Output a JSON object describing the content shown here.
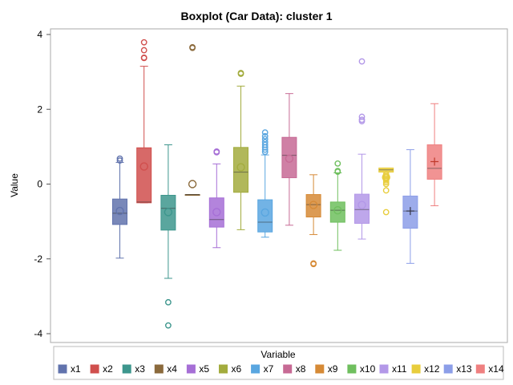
{
  "chart_data": {
    "type": "boxplot",
    "title": "Boxplot (Car Data): cluster 1",
    "xlabel": "",
    "ylabel": "Value",
    "ylim": [
      -4.3,
      4.2
    ],
    "yticks": [
      -4,
      -2,
      0,
      2,
      4
    ],
    "yticklabels": [
      "-4",
      "-2",
      "0",
      "2",
      "4"
    ],
    "grid": false,
    "legend": {
      "title": "Variable",
      "placement": "bottom"
    },
    "series": [
      {
        "name": "x1",
        "color": "#6173ad",
        "whisker_low": -1.98,
        "q1": -1.08,
        "median": -0.78,
        "q3": -0.4,
        "whisker_high": 0.58,
        "mean": -0.72,
        "outliers": [
          0.63,
          0.68
        ]
      },
      {
        "name": "x2",
        "color": "#d04f4d",
        "whisker_low": -0.5,
        "q1": -0.5,
        "median": -0.48,
        "q3": 0.97,
        "whisker_high": 3.15,
        "mean": 0.47,
        "outliers": [
          3.37,
          3.38,
          3.58,
          3.79
        ]
      },
      {
        "name": "x3",
        "color": "#3d968d",
        "whisker_low": -2.52,
        "q1": -1.23,
        "median": -0.65,
        "q3": -0.3,
        "whisker_high": 1.05,
        "mean": -0.75,
        "outliers": [
          -3.16,
          -3.78
        ]
      },
      {
        "name": "x4",
        "color": "#8b6a3c",
        "whisker_low": -0.28,
        "q1": -0.28,
        "median": -0.28,
        "q3": -0.28,
        "whisker_high": -0.28,
        "mean": 0.0,
        "outliers": [
          3.64,
          3.66
        ]
      },
      {
        "name": "x5",
        "color": "#a66fd6",
        "whisker_low": -1.7,
        "q1": -1.15,
        "median": -0.95,
        "q3": -0.37,
        "whisker_high": 0.54,
        "mean": -0.75,
        "outliers": [
          0.85,
          0.87
        ]
      },
      {
        "name": "x6",
        "color": "#a3ac3e",
        "whisker_low": -1.22,
        "q1": -0.22,
        "median": 0.32,
        "q3": 0.98,
        "whisker_high": 2.62,
        "mean": 0.45,
        "outliers": [
          2.95,
          2.97
        ]
      },
      {
        "name": "x7",
        "color": "#59a6e0",
        "whisker_low": -1.42,
        "q1": -1.28,
        "median": -1.02,
        "q3": -0.42,
        "whisker_high": 0.78,
        "mean": -0.76,
        "outliers": [
          0.86,
          0.92,
          0.98,
          1.05,
          1.12,
          1.2,
          1.28,
          1.38
        ]
      },
      {
        "name": "x8",
        "color": "#c76a95",
        "whisker_low": -1.1,
        "q1": 0.17,
        "median": 0.77,
        "q3": 1.25,
        "whisker_high": 2.42,
        "mean": 0.68,
        "outliers": []
      },
      {
        "name": "x9",
        "color": "#d68a36",
        "whisker_low": -1.35,
        "q1": -0.88,
        "median": -0.55,
        "q3": -0.28,
        "whisker_high": 0.25,
        "mean": -0.56,
        "outliers": [
          -2.12,
          -2.14
        ]
      },
      {
        "name": "x10",
        "color": "#6fbf5e",
        "whisker_low": -1.77,
        "q1": -1.02,
        "median": -0.7,
        "q3": -0.48,
        "whisker_high": 0.3,
        "mean": -0.7,
        "outliers": [
          0.33,
          0.35,
          0.55
        ]
      },
      {
        "name": "x11",
        "color": "#b398e8",
        "whisker_low": -1.47,
        "q1": -1.05,
        "median": -0.68,
        "q3": -0.27,
        "whisker_high": 0.8,
        "mean": -0.56,
        "outliers": [
          1.68,
          1.72,
          1.8,
          3.28
        ]
      },
      {
        "name": "x12",
        "color": "#e8cd3c",
        "whisker_low": 0.32,
        "q1": 0.32,
        "median": 0.38,
        "q3": 0.43,
        "whisker_high": 0.43,
        "mean": 0.18,
        "outliers": [
          -0.17,
          -0.75,
          0.0,
          0.05,
          0.1,
          0.14,
          0.18,
          0.22,
          0.26
        ]
      },
      {
        "name": "x13",
        "color": "#8c9ee8",
        "whisker_low": -2.12,
        "q1": -1.18,
        "median": -0.72,
        "q3": -0.32,
        "whisker_high": 0.92,
        "mean": -0.72,
        "outliers": []
      },
      {
        "name": "x14",
        "color": "#ef8080",
        "whisker_low": -0.58,
        "q1": 0.13,
        "median": 0.42,
        "q3": 1.05,
        "whisker_high": 2.15,
        "mean": 0.6,
        "outliers": []
      }
    ]
  }
}
